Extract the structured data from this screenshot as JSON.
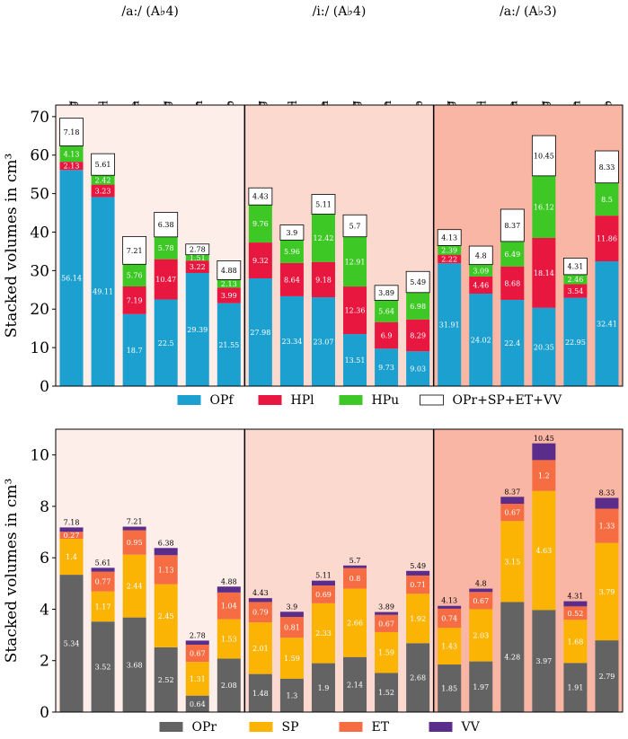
{
  "groups": [
    {
      "title": "/a:/ (A♭4)",
      "bg": "#fdeeea"
    },
    {
      "title": "/i:/ (A♭4)",
      "bg": "#fbd9cf"
    },
    {
      "title": "/a:/ (A♭3)",
      "bg": "#f9b6a4"
    }
  ],
  "categories": [
    "Belting",
    "Twang-Oral",
    "Opera",
    "Sobbing",
    "Speech",
    "Falsetto"
  ],
  "chart_data": [
    {
      "type": "bar",
      "stacked": true,
      "title": "",
      "ylabel": "Stacked volumes in cm³",
      "ylim": [
        0,
        73
      ],
      "yticks": [
        0,
        10,
        20,
        30,
        40,
        50,
        60,
        70
      ],
      "groups": [
        "/a:/ (A♭4)",
        "/i:/ (A♭4)",
        "/a:/ (A♭3)"
      ],
      "categories": [
        "Belting",
        "Twang-Oral",
        "Opera",
        "Sobbing",
        "Speech",
        "Falsetto"
      ],
      "series": [
        {
          "name": "OPf",
          "color": "#1ca0cf",
          "label_color": "#ffffff",
          "values": [
            [
              56.14,
              49.11,
              18.7,
              22.5,
              29.39,
              21.55
            ],
            [
              27.98,
              23.34,
              23.07,
              13.51,
              9.73,
              9.03
            ],
            [
              31.91,
              24.02,
              22.4,
              20.35,
              22.95,
              32.41
            ]
          ]
        },
        {
          "name": "HPl",
          "color": "#e8173f",
          "label_color": "#ffffff",
          "values": [
            [
              2.13,
              3.23,
              7.19,
              10.47,
              3.22,
              3.99
            ],
            [
              9.32,
              8.64,
              9.18,
              12.36,
              6.9,
              8.29
            ],
            [
              2.22,
              4.46,
              8.68,
              18.14,
              3.54,
              11.86
            ]
          ]
        },
        {
          "name": "HPu",
          "color": "#3ec825",
          "label_color": "#ffffff",
          "values": [
            [
              4.13,
              2.42,
              5.76,
              5.78,
              1.51,
              2.13
            ],
            [
              9.76,
              5.96,
              12.42,
              12.91,
              5.64,
              6.98
            ],
            [
              2.39,
              3.09,
              6.49,
              16.12,
              2.46,
              8.5
            ]
          ]
        },
        {
          "name": "OPr+SP+ET+VV",
          "color": "#ffffff",
          "label_color": "#000000",
          "outlined": true,
          "values": [
            [
              7.18,
              5.61,
              7.21,
              6.38,
              2.78,
              4.88
            ],
            [
              4.43,
              3.9,
              5.11,
              5.7,
              3.89,
              5.49
            ],
            [
              4.13,
              4.8,
              8.37,
              10.45,
              4.31,
              8.33
            ]
          ]
        }
      ],
      "legend": "bottom-center"
    },
    {
      "type": "bar",
      "stacked": true,
      "title": "",
      "ylabel": "Stacked volumes in cm³",
      "ylim": [
        0,
        11
      ],
      "yticks": [
        0,
        2,
        4,
        6,
        8,
        10
      ],
      "groups": [
        "/a:/ (A♭4)",
        "/i:/ (A♭4)",
        "/a:/ (A♭3)"
      ],
      "categories": [
        "Belting",
        "Twang-Oral",
        "Opera",
        "Sobbing",
        "Speech",
        "Falsetto"
      ],
      "series": [
        {
          "name": "OPr",
          "color": "#636363",
          "label_color": "#ffffff",
          "values": [
            [
              5.34,
              3.52,
              3.68,
              2.52,
              0.64,
              2.08
            ],
            [
              1.48,
              1.3,
              1.9,
              2.14,
              1.52,
              2.68
            ],
            [
              1.85,
              1.97,
              4.28,
              3.97,
              1.91,
              2.79
            ]
          ]
        },
        {
          "name": "SP",
          "color": "#fbb404",
          "label_color": "#ffffff",
          "values": [
            [
              1.4,
              1.17,
              2.44,
              2.45,
              1.31,
              1.53
            ],
            [
              2.01,
              1.59,
              2.33,
              2.66,
              1.59,
              1.92
            ],
            [
              1.43,
              2.03,
              3.15,
              4.63,
              1.68,
              3.79
            ]
          ]
        },
        {
          "name": "ET",
          "color": "#f66d44",
          "label_color": "#ffffff",
          "values": [
            [
              0.27,
              0.77,
              0.95,
              1.13,
              0.67,
              1.04
            ],
            [
              0.79,
              0.81,
              0.69,
              0.8,
              0.67,
              0.71
            ],
            [
              0.74,
              0.67,
              0.67,
              1.2,
              0.52,
              1.33
            ]
          ]
        },
        {
          "name": "VV",
          "color": "#5a2d8a",
          "label_color": "#ffffff",
          "show_labels": false,
          "values": [
            [
              0.17,
              0.15,
              0.14,
              0.28,
              0.16,
              0.23
            ],
            [
              0.15,
              0.2,
              0.19,
              0.1,
              0.11,
              0.18
            ],
            [
              0.11,
              0.13,
              0.27,
              0.65,
              0.2,
              0.42
            ]
          ]
        }
      ],
      "totals": [
        [
          7.18,
          5.61,
          7.21,
          6.38,
          2.78,
          4.88
        ],
        [
          4.43,
          3.9,
          5.11,
          5.7,
          3.89,
          5.49
        ],
        [
          4.13,
          4.8,
          8.37,
          10.45,
          4.31,
          8.33
        ]
      ],
      "legend": "bottom-center"
    }
  ]
}
